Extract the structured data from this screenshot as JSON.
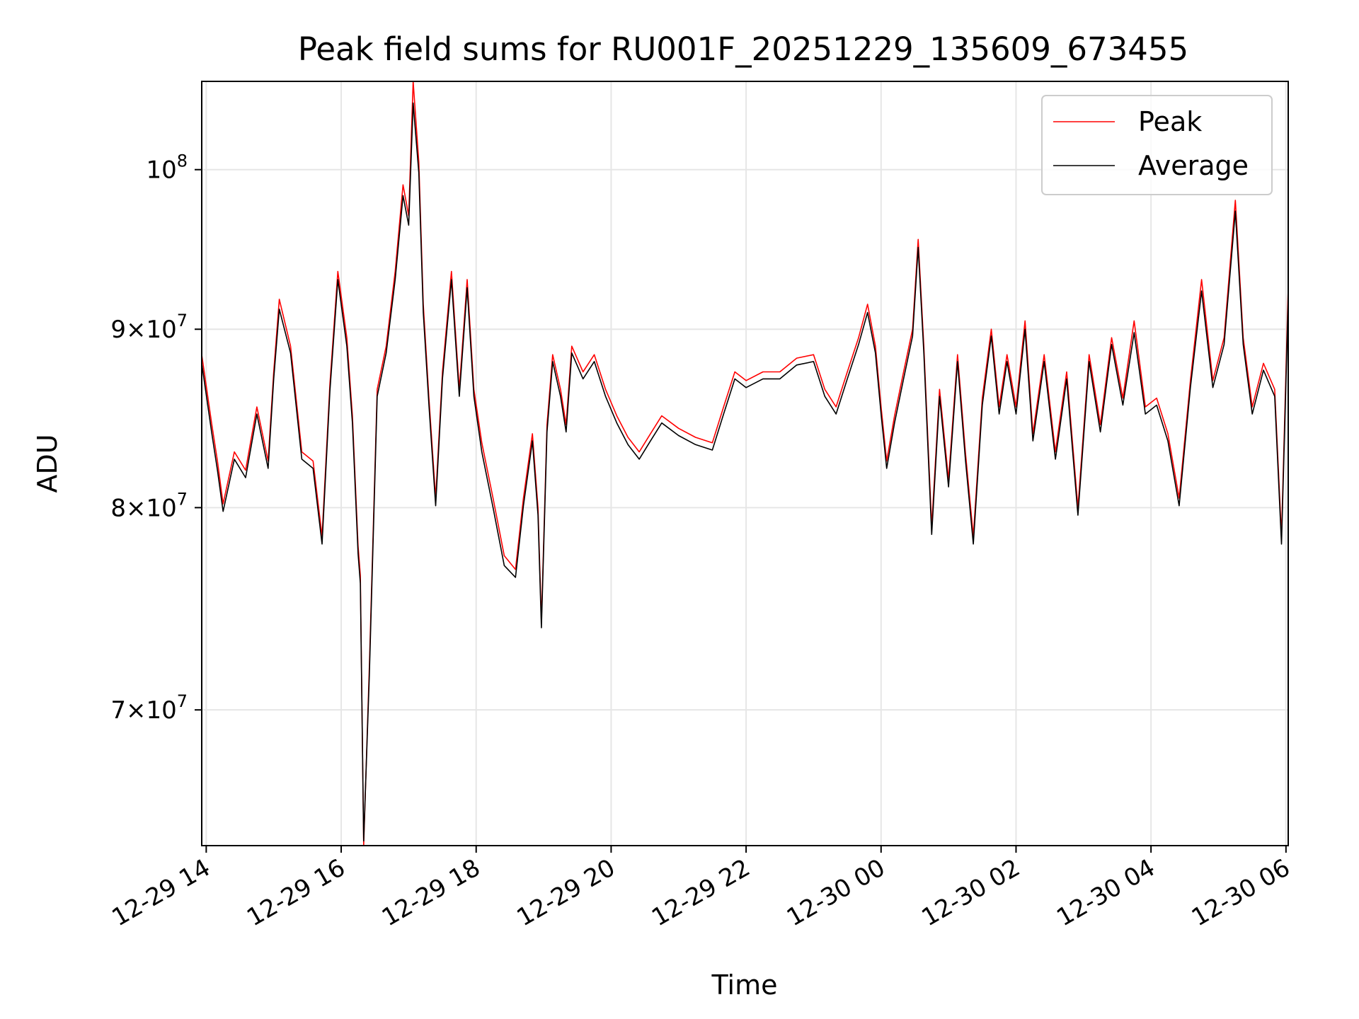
{
  "chart_data": {
    "type": "line",
    "title": "Peak field sums for RU001F_20251229_135609_673455",
    "xlabel": "Time",
    "ylabel": "ADU",
    "yscale": "log",
    "ylim": [
      64000000,
      106000000
    ],
    "xlim": [
      "2025-12-29 13:56",
      "2025-12-30 06:02"
    ],
    "grid": true,
    "legend_position": "top-right",
    "x_ticks": [
      {
        "value": "2025-12-29 14:00",
        "label": "12-29 14"
      },
      {
        "value": "2025-12-29 16:00",
        "label": "12-29 16"
      },
      {
        "value": "2025-12-29 18:00",
        "label": "12-29 18"
      },
      {
        "value": "2025-12-29 20:00",
        "label": "12-29 20"
      },
      {
        "value": "2025-12-29 22:00",
        "label": "12-29 22"
      },
      {
        "value": "2025-12-30 00:00",
        "label": "12-30 00"
      },
      {
        "value": "2025-12-30 02:00",
        "label": "12-30 02"
      },
      {
        "value": "2025-12-30 04:00",
        "label": "12-30 04"
      },
      {
        "value": "2025-12-30 06:00",
        "label": "12-30 06"
      }
    ],
    "y_ticks": [
      {
        "value": 70000000,
        "mantissa": "7",
        "exponent": "7"
      },
      {
        "value": 80000000,
        "mantissa": "8",
        "exponent": "7"
      },
      {
        "value": 90000000,
        "mantissa": "9",
        "exponent": "7"
      },
      {
        "value": 100000000,
        "mantissa": "",
        "exponent": "8"
      }
    ],
    "series": [
      {
        "name": "Peak",
        "color": "#ff0000",
        "points": [
          [
            "2025-12-29 13:56",
            88.5
          ],
          [
            "2025-12-29 14:05",
            84.5
          ],
          [
            "2025-12-29 14:10",
            82.5
          ],
          [
            "2025-12-29 14:15",
            80.2
          ],
          [
            "2025-12-29 14:25",
            83.0
          ],
          [
            "2025-12-29 14:35",
            82.0
          ],
          [
            "2025-12-29 14:45",
            85.5
          ],
          [
            "2025-12-29 14:55",
            82.5
          ],
          [
            "2025-12-29 15:00",
            87.5
          ],
          [
            "2025-12-29 15:05",
            91.8
          ],
          [
            "2025-12-29 15:15",
            89.0
          ],
          [
            "2025-12-29 15:25",
            83.0
          ],
          [
            "2025-12-29 15:35",
            82.5
          ],
          [
            "2025-12-29 15:43",
            78.5
          ],
          [
            "2025-12-29 15:50",
            86.8
          ],
          [
            "2025-12-29 15:57",
            93.5
          ],
          [
            "2025-12-29 16:05",
            89.5
          ],
          [
            "2025-12-29 16:10",
            85.0
          ],
          [
            "2025-12-29 16:15",
            78.0
          ],
          [
            "2025-12-29 16:17",
            76.5
          ],
          [
            "2025-12-29 16:20",
            64.0
          ],
          [
            "2025-12-29 16:25",
            72.0
          ],
          [
            "2025-12-29 16:32",
            86.5
          ],
          [
            "2025-12-29 16:40",
            89.0
          ],
          [
            "2025-12-29 16:48",
            93.5
          ],
          [
            "2025-12-29 16:55",
            99.0
          ],
          [
            "2025-12-29 17:00",
            97.0
          ],
          [
            "2025-12-29 17:04",
            106.0
          ],
          [
            "2025-12-29 17:09",
            100.5
          ],
          [
            "2025-12-29 17:13",
            91.5
          ],
          [
            "2025-12-29 17:18",
            86.0
          ],
          [
            "2025-12-29 17:24",
            80.5
          ],
          [
            "2025-12-29 17:30",
            87.5
          ],
          [
            "2025-12-29 17:38",
            93.5
          ],
          [
            "2025-12-29 17:45",
            86.5
          ],
          [
            "2025-12-29 17:52",
            93.0
          ],
          [
            "2025-12-29 17:58",
            86.5
          ],
          [
            "2025-12-29 18:05",
            83.5
          ],
          [
            "2025-12-29 18:15",
            80.5
          ],
          [
            "2025-12-29 18:25",
            77.5
          ],
          [
            "2025-12-29 18:35",
            76.8
          ],
          [
            "2025-12-29 18:42",
            80.5
          ],
          [
            "2025-12-29 18:50",
            84.0
          ],
          [
            "2025-12-29 18:55",
            80.0
          ],
          [
            "2025-12-29 18:58",
            74.2
          ],
          [
            "2025-12-29 19:03",
            84.5
          ],
          [
            "2025-12-29 19:08",
            88.5
          ],
          [
            "2025-12-29 19:15",
            86.5
          ],
          [
            "2025-12-29 19:20",
            84.5
          ],
          [
            "2025-12-29 19:25",
            89.0
          ],
          [
            "2025-12-29 19:35",
            87.5
          ],
          [
            "2025-12-29 19:45",
            88.5
          ],
          [
            "2025-12-29 19:55",
            86.5
          ],
          [
            "2025-12-29 20:05",
            85.0
          ],
          [
            "2025-12-29 20:15",
            83.8
          ],
          [
            "2025-12-29 20:25",
            83.0
          ],
          [
            "2025-12-29 20:35",
            84.0
          ],
          [
            "2025-12-29 20:45",
            85.0
          ],
          [
            "2025-12-29 21:00",
            84.3
          ],
          [
            "2025-12-29 21:15",
            83.8
          ],
          [
            "2025-12-29 21:30",
            83.5
          ],
          [
            "2025-12-29 21:40",
            85.5
          ],
          [
            "2025-12-29 21:50",
            87.5
          ],
          [
            "2025-12-29 22:00",
            87.0
          ],
          [
            "2025-12-29 22:15",
            87.5
          ],
          [
            "2025-12-29 22:30",
            87.5
          ],
          [
            "2025-12-29 22:45",
            88.3
          ],
          [
            "2025-12-29 23:00",
            88.5
          ],
          [
            "2025-12-29 23:10",
            86.5
          ],
          [
            "2025-12-29 23:20",
            85.5
          ],
          [
            "2025-12-29 23:30",
            87.5
          ],
          [
            "2025-12-29 23:40",
            89.5
          ],
          [
            "2025-12-29 23:48",
            91.5
          ],
          [
            "2025-12-29 23:55",
            89.0
          ],
          [
            "2025-12-30 00:00",
            85.5
          ],
          [
            "2025-12-30 00:05",
            82.5
          ],
          [
            "2025-12-30 00:12",
            85.0
          ],
          [
            "2025-12-30 00:20",
            87.5
          ],
          [
            "2025-12-30 00:28",
            90.0
          ],
          [
            "2025-12-30 00:33",
            95.5
          ],
          [
            "2025-12-30 00:38",
            89.0
          ],
          [
            "2025-12-30 00:45",
            79.0
          ],
          [
            "2025-12-30 00:52",
            86.5
          ],
          [
            "2025-12-30 01:00",
            81.5
          ],
          [
            "2025-12-30 01:08",
            88.5
          ],
          [
            "2025-12-30 01:15",
            83.0
          ],
          [
            "2025-12-30 01:22",
            78.5
          ],
          [
            "2025-12-30 01:30",
            86.0
          ],
          [
            "2025-12-30 01:38",
            90.0
          ],
          [
            "2025-12-30 01:45",
            85.5
          ],
          [
            "2025-12-30 01:52",
            88.5
          ],
          [
            "2025-12-30 02:00",
            85.5
          ],
          [
            "2025-12-30 02:08",
            90.5
          ],
          [
            "2025-12-30 02:15",
            84.0
          ],
          [
            "2025-12-30 02:25",
            88.5
          ],
          [
            "2025-12-30 02:35",
            83.0
          ],
          [
            "2025-12-30 02:45",
            87.5
          ],
          [
            "2025-12-30 02:55",
            80.0
          ],
          [
            "2025-12-30 03:05",
            88.5
          ],
          [
            "2025-12-30 03:15",
            84.5
          ],
          [
            "2025-12-30 03:25",
            89.5
          ],
          [
            "2025-12-30 03:35",
            86.0
          ],
          [
            "2025-12-30 03:45",
            90.5
          ],
          [
            "2025-12-30 03:55",
            85.5
          ],
          [
            "2025-12-30 04:05",
            86.0
          ],
          [
            "2025-12-30 04:15",
            84.0
          ],
          [
            "2025-12-30 04:25",
            80.5
          ],
          [
            "2025-12-30 04:35",
            87.0
          ],
          [
            "2025-12-30 04:45",
            93.0
          ],
          [
            "2025-12-30 04:55",
            87.0
          ],
          [
            "2025-12-30 05:05",
            89.5
          ],
          [
            "2025-12-30 05:15",
            98.0
          ],
          [
            "2025-12-30 05:22",
            89.5
          ],
          [
            "2025-12-30 05:30",
            85.5
          ],
          [
            "2025-12-30 05:40",
            88.0
          ],
          [
            "2025-12-30 05:50",
            86.5
          ],
          [
            "2025-12-30 05:56",
            78.5
          ],
          [
            "2025-12-30 06:02",
            92.5
          ]
        ]
      },
      {
        "name": "Average",
        "color": "#000000",
        "points": [
          [
            "2025-12-29 13:56",
            88.0
          ],
          [
            "2025-12-29 14:05",
            84.0
          ],
          [
            "2025-12-29 14:10",
            82.0
          ],
          [
            "2025-12-29 14:15",
            79.8
          ],
          [
            "2025-12-29 14:25",
            82.6
          ],
          [
            "2025-12-29 14:35",
            81.6
          ],
          [
            "2025-12-29 14:45",
            85.1
          ],
          [
            "2025-12-29 14:55",
            82.1
          ],
          [
            "2025-12-29 15:00",
            87.1
          ],
          [
            "2025-12-29 15:05",
            91.2
          ],
          [
            "2025-12-29 15:15",
            88.6
          ],
          [
            "2025-12-29 15:25",
            82.6
          ],
          [
            "2025-12-29 15:35",
            82.1
          ],
          [
            "2025-12-29 15:43",
            78.1
          ],
          [
            "2025-12-29 15:50",
            86.4
          ],
          [
            "2025-12-29 15:57",
            93.0
          ],
          [
            "2025-12-29 16:05",
            89.0
          ],
          [
            "2025-12-29 16:10",
            84.6
          ],
          [
            "2025-12-29 16:15",
            77.6
          ],
          [
            "2025-12-29 16:17",
            76.1
          ],
          [
            "2025-12-29 16:20",
            64.2
          ],
          [
            "2025-12-29 16:25",
            71.6
          ],
          [
            "2025-12-29 16:32",
            86.1
          ],
          [
            "2025-12-29 16:40",
            88.6
          ],
          [
            "2025-12-29 16:48",
            93.0
          ],
          [
            "2025-12-29 16:55",
            98.3
          ],
          [
            "2025-12-29 17:00",
            96.4
          ],
          [
            "2025-12-29 17:04",
            104.5
          ],
          [
            "2025-12-29 17:09",
            99.8
          ],
          [
            "2025-12-29 17:13",
            91.0
          ],
          [
            "2025-12-29 17:18",
            85.6
          ],
          [
            "2025-12-29 17:24",
            80.1
          ],
          [
            "2025-12-29 17:30",
            87.1
          ],
          [
            "2025-12-29 17:38",
            93.0
          ],
          [
            "2025-12-29 17:45",
            86.1
          ],
          [
            "2025-12-29 17:52",
            92.5
          ],
          [
            "2025-12-29 17:58",
            86.1
          ],
          [
            "2025-12-29 18:05",
            83.0
          ],
          [
            "2025-12-29 18:15",
            80.0
          ],
          [
            "2025-12-29 18:25",
            77.0
          ],
          [
            "2025-12-29 18:35",
            76.4
          ],
          [
            "2025-12-29 18:42",
            80.1
          ],
          [
            "2025-12-29 18:50",
            83.6
          ],
          [
            "2025-12-29 18:55",
            79.6
          ],
          [
            "2025-12-29 18:58",
            73.9
          ],
          [
            "2025-12-29 19:03",
            84.1
          ],
          [
            "2025-12-29 19:08",
            88.1
          ],
          [
            "2025-12-29 19:15",
            86.1
          ],
          [
            "2025-12-29 19:20",
            84.1
          ],
          [
            "2025-12-29 19:25",
            88.6
          ],
          [
            "2025-12-29 19:35",
            87.1
          ],
          [
            "2025-12-29 19:45",
            88.1
          ],
          [
            "2025-12-29 19:55",
            86.1
          ],
          [
            "2025-12-29 20:05",
            84.6
          ],
          [
            "2025-12-29 20:15",
            83.4
          ],
          [
            "2025-12-29 20:25",
            82.6
          ],
          [
            "2025-12-29 20:35",
            83.6
          ],
          [
            "2025-12-29 20:45",
            84.6
          ],
          [
            "2025-12-29 21:00",
            83.9
          ],
          [
            "2025-12-29 21:15",
            83.4
          ],
          [
            "2025-12-29 21:30",
            83.1
          ],
          [
            "2025-12-29 21:40",
            85.1
          ],
          [
            "2025-12-29 21:50",
            87.1
          ],
          [
            "2025-12-29 22:00",
            86.6
          ],
          [
            "2025-12-29 22:15",
            87.1
          ],
          [
            "2025-12-29 22:30",
            87.1
          ],
          [
            "2025-12-29 22:45",
            87.9
          ],
          [
            "2025-12-29 23:00",
            88.1
          ],
          [
            "2025-12-29 23:10",
            86.1
          ],
          [
            "2025-12-29 23:20",
            85.1
          ],
          [
            "2025-12-29 23:30",
            87.1
          ],
          [
            "2025-12-29 23:40",
            89.1
          ],
          [
            "2025-12-29 23:48",
            91.0
          ],
          [
            "2025-12-29 23:55",
            88.6
          ],
          [
            "2025-12-30 00:00",
            85.1
          ],
          [
            "2025-12-30 00:05",
            82.1
          ],
          [
            "2025-12-30 00:12",
            84.6
          ],
          [
            "2025-12-30 00:20",
            87.1
          ],
          [
            "2025-12-30 00:28",
            89.6
          ],
          [
            "2025-12-30 00:33",
            95.0
          ],
          [
            "2025-12-30 00:38",
            88.6
          ],
          [
            "2025-12-30 00:45",
            78.6
          ],
          [
            "2025-12-30 00:52",
            86.1
          ],
          [
            "2025-12-30 01:00",
            81.1
          ],
          [
            "2025-12-30 01:08",
            88.1
          ],
          [
            "2025-12-30 01:15",
            82.6
          ],
          [
            "2025-12-30 01:22",
            78.1
          ],
          [
            "2025-12-30 01:30",
            85.6
          ],
          [
            "2025-12-30 01:38",
            89.6
          ],
          [
            "2025-12-30 01:45",
            85.1
          ],
          [
            "2025-12-30 01:52",
            88.1
          ],
          [
            "2025-12-30 02:00",
            85.1
          ],
          [
            "2025-12-30 02:08",
            90.0
          ],
          [
            "2025-12-30 02:15",
            83.6
          ],
          [
            "2025-12-30 02:25",
            88.1
          ],
          [
            "2025-12-30 02:35",
            82.6
          ],
          [
            "2025-12-30 02:45",
            87.1
          ],
          [
            "2025-12-30 02:55",
            79.6
          ],
          [
            "2025-12-30 03:05",
            88.1
          ],
          [
            "2025-12-30 03:15",
            84.1
          ],
          [
            "2025-12-30 03:25",
            89.1
          ],
          [
            "2025-12-30 03:35",
            85.6
          ],
          [
            "2025-12-30 03:45",
            89.8
          ],
          [
            "2025-12-30 03:55",
            85.1
          ],
          [
            "2025-12-30 04:05",
            85.6
          ],
          [
            "2025-12-30 04:15",
            83.6
          ],
          [
            "2025-12-30 04:25",
            80.1
          ],
          [
            "2025-12-30 04:35",
            86.6
          ],
          [
            "2025-12-30 04:45",
            92.3
          ],
          [
            "2025-12-30 04:55",
            86.6
          ],
          [
            "2025-12-30 05:05",
            89.1
          ],
          [
            "2025-12-30 05:15",
            97.3
          ],
          [
            "2025-12-30 05:22",
            89.1
          ],
          [
            "2025-12-30 05:30",
            85.1
          ],
          [
            "2025-12-30 05:40",
            87.6
          ],
          [
            "2025-12-30 05:50",
            86.1
          ],
          [
            "2025-12-30 05:56",
            78.1
          ],
          [
            "2025-12-30 06:02",
            91.8
          ]
        ]
      }
    ],
    "y_units_note": "points y values are in millions of ADU"
  }
}
